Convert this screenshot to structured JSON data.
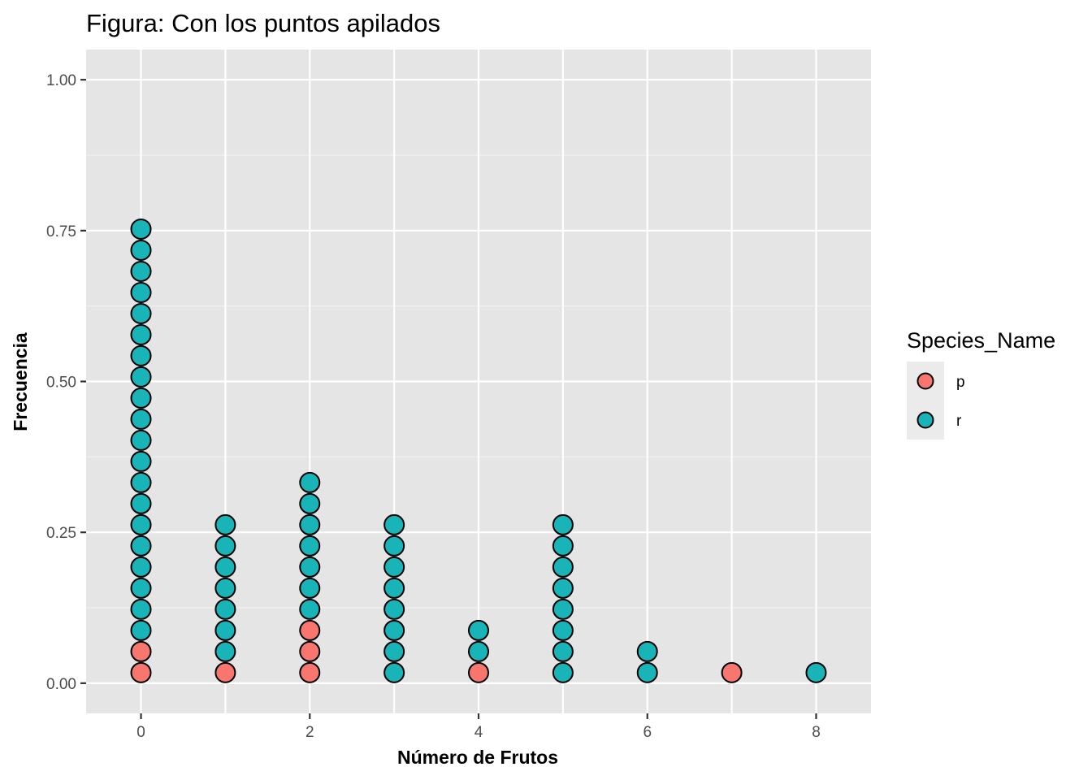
{
  "chart_data": {
    "type": "scatter",
    "subtype": "dotplot-stacked",
    "title": "Figura: Con los puntos apilados",
    "xlabel": "Número de Frutos",
    "ylabel": "Frecuencia",
    "xlim": [
      -0.65,
      8.65
    ],
    "ylim": [
      -0.05,
      1.05
    ],
    "x_ticks": [
      0,
      2,
      4,
      6,
      8
    ],
    "x_tick_labels": [
      "0",
      "2",
      "4",
      "6",
      "8"
    ],
    "y_ticks": [
      0,
      0.25,
      0.5,
      0.75,
      1
    ],
    "y_tick_labels": [
      "0.00",
      "0.25",
      "0.50",
      "0.75",
      "1.00"
    ],
    "grid": true,
    "background": "#e5e5e5",
    "legend": {
      "title": "Species_Name",
      "position": "right",
      "entries": [
        {
          "label": "p",
          "color": "#f8766d"
        },
        {
          "label": "r",
          "color": "#19b4b8"
        }
      ]
    },
    "series": [
      {
        "name": "p",
        "color": "#f8766d",
        "x": [
          0,
          0,
          1,
          2,
          2,
          2,
          4,
          7
        ],
        "y": [
          0.0175,
          0.0525,
          0.0175,
          0.0175,
          0.0525,
          0.0875,
          0.0175,
          0.0175
        ]
      },
      {
        "name": "r",
        "color": "#19b4b8",
        "stacks": [
          {
            "x": 0,
            "base_index": 2,
            "count": 20
          },
          {
            "x": 1,
            "base_index": 1,
            "count": 7
          },
          {
            "x": 2,
            "base_index": 3,
            "count": 7
          },
          {
            "x": 3,
            "base_index": 0,
            "count": 8
          },
          {
            "x": 4,
            "base_index": 1,
            "count": 2
          },
          {
            "x": 5,
            "base_index": 0,
            "count": 8
          },
          {
            "x": 6,
            "base_index": 0,
            "count": 2
          },
          {
            "x": 8,
            "base_index": 0,
            "count": 1
          }
        ]
      }
    ],
    "stack_spacing": 0.035,
    "stack_start": 0.0175
  }
}
